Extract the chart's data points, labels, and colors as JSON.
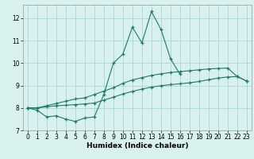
{
  "xlabel": "Humidex (Indice chaleur)",
  "line1_x": [
    0,
    1,
    2,
    3,
    4,
    5,
    6,
    7,
    8,
    9,
    10,
    11,
    12,
    13,
    14,
    15,
    16
  ],
  "line1_y": [
    8.0,
    7.9,
    7.6,
    7.65,
    7.5,
    7.4,
    7.55,
    7.6,
    8.6,
    10.0,
    10.4,
    11.6,
    10.9,
    12.3,
    11.5,
    10.2,
    9.5
  ],
  "line2_x": [
    0,
    1,
    2,
    3,
    4,
    5,
    6,
    7,
    8,
    9,
    10,
    11,
    12,
    13,
    14,
    15,
    16,
    17,
    18,
    19,
    20,
    21,
    22,
    23
  ],
  "line2_y": [
    8.0,
    8.0,
    8.1,
    8.2,
    8.3,
    8.4,
    8.45,
    8.6,
    8.75,
    8.9,
    9.1,
    9.25,
    9.35,
    9.45,
    9.52,
    9.58,
    9.62,
    9.66,
    9.7,
    9.74,
    9.76,
    9.78,
    9.4,
    9.2
  ],
  "line3_x": [
    0,
    1,
    2,
    3,
    4,
    5,
    6,
    7,
    8,
    9,
    10,
    11,
    12,
    13,
    14,
    15,
    16,
    17,
    18,
    19,
    20,
    21,
    22,
    23
  ],
  "line3_y": [
    8.0,
    8.0,
    8.05,
    8.1,
    8.12,
    8.15,
    8.18,
    8.22,
    8.35,
    8.48,
    8.62,
    8.74,
    8.84,
    8.93,
    8.99,
    9.04,
    9.08,
    9.12,
    9.18,
    9.26,
    9.33,
    9.38,
    9.4,
    9.2
  ],
  "line_color": "#1e7a6a",
  "bg_color": "#d8f0ee",
  "grid_color": "#aad8d4",
  "ylim": [
    7.0,
    12.6
  ],
  "xlim": [
    -0.5,
    23.5
  ],
  "yticks": [
    7,
    8,
    9,
    10,
    11,
    12
  ],
  "xticks": [
    0,
    1,
    2,
    3,
    4,
    5,
    6,
    7,
    8,
    9,
    10,
    11,
    12,
    13,
    14,
    15,
    16,
    17,
    18,
    19,
    20,
    21,
    22,
    23
  ],
  "tick_fontsize": 5.5,
  "xlabel_fontsize": 6.5
}
